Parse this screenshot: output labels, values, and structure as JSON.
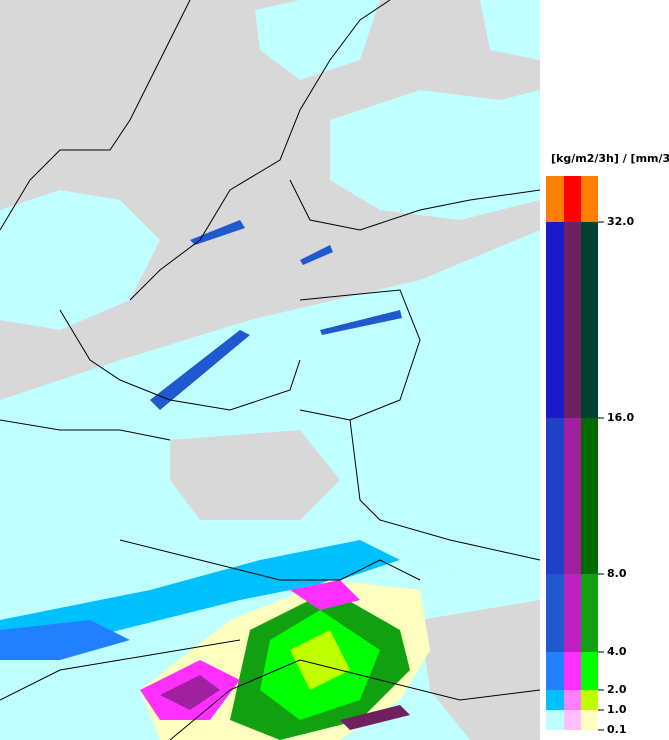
{
  "legend": {
    "unit": "[kg/m2/3h] / [mm/3h]",
    "columns": [
      [
        "#ff8000",
        "#1a1ac8",
        "#2040c8",
        "#2058d0",
        "#2080ff",
        "#00c0ff",
        "#c0ffff"
      ],
      [
        "#ff0000",
        "#702060",
        "#a020a0",
        "#c020c0",
        "#ff30ff",
        "#ff80ff",
        "#ffc0ff"
      ],
      [
        "#ff8000",
        "#004030",
        "#006a00",
        "#10a010",
        "#00ff00",
        "#c0ff00",
        "#ffffc0"
      ]
    ],
    "ticks": [
      {
        "value": 32,
        "label": "32.0"
      },
      {
        "value": 16,
        "label": "16.0"
      },
      {
        "value": 8,
        "label": "8.0"
      },
      {
        "value": 4,
        "label": "4.0"
      },
      {
        "value": 2,
        "label": "2.0"
      },
      {
        "value": 1,
        "label": "1.0"
      },
      {
        "value": 0.1,
        "label": "0.1"
      }
    ]
  }
}
